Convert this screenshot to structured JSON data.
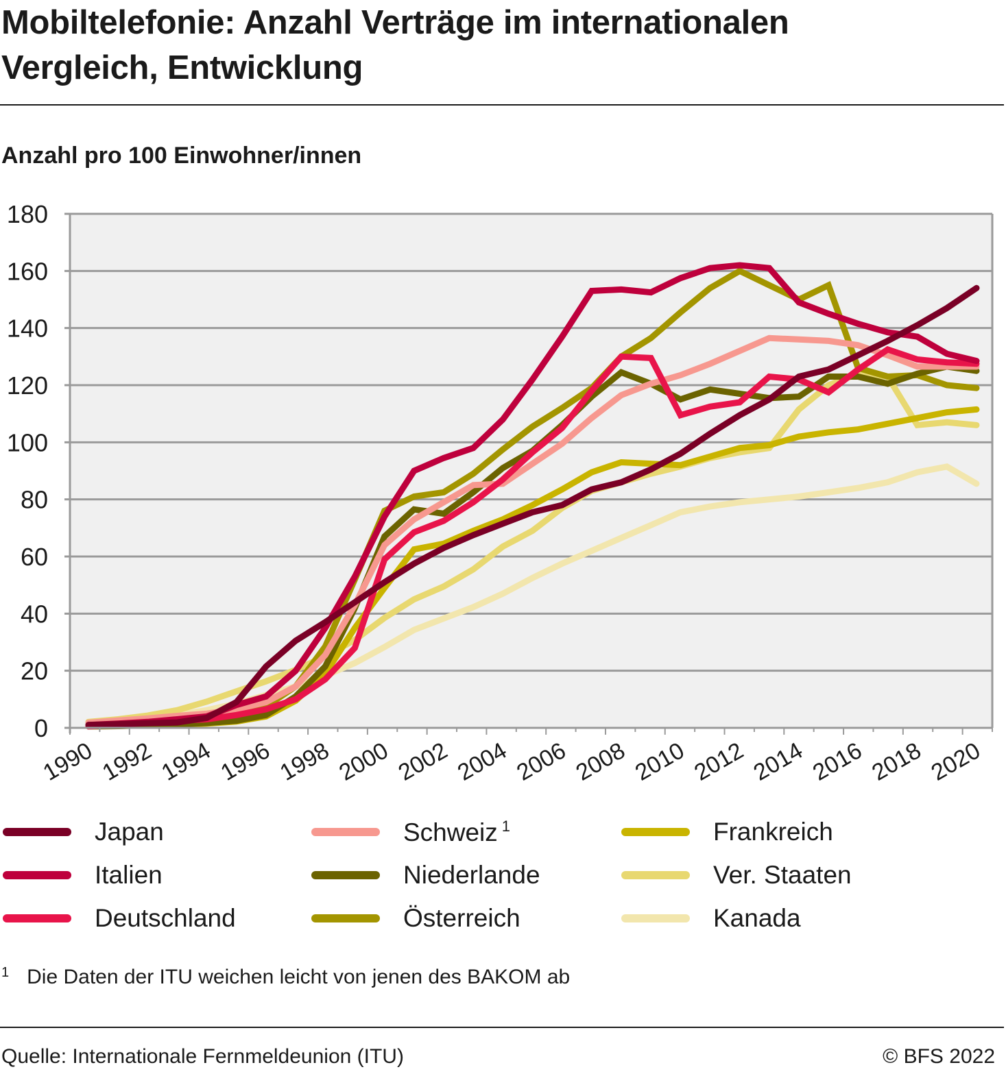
{
  "title": "Mobiltelefonie: Anzahl Verträge im internationalen Vergleich, Entwicklung",
  "title_lines": [
    "Mobiltelefonie: Anzahl Verträge im internationalen",
    "Vergleich, Entwicklung"
  ],
  "footnote": {
    "mark": "1",
    "text": "Die Daten der ITU weichen leicht von jenen des BAKOM ab"
  },
  "source": "Quelle: Internationale Fernmeldeunion (ITU)",
  "copyright": "© BFS 2022",
  "chart_data": {
    "type": "line",
    "title": "Mobiltelefonie: Anzahl Verträge im internationalen Vergleich, Entwicklung",
    "subtitle": "Anzahl pro 100 Einwohner/innen",
    "xlabel": "",
    "ylabel": "Anzahl pro 100 Einwohner/innen",
    "x": [
      1990,
      1991,
      1992,
      1993,
      1994,
      1995,
      1996,
      1997,
      1998,
      1999,
      2000,
      2001,
      2002,
      2003,
      2004,
      2005,
      2006,
      2007,
      2008,
      2009,
      2010,
      2011,
      2012,
      2013,
      2014,
      2015,
      2016,
      2017,
      2018,
      2019,
      2020
    ],
    "x_ticks": [
      "1990",
      "1992",
      "1994",
      "1996",
      "1998",
      "2000",
      "2002",
      "2004",
      "2006",
      "2008",
      "2010",
      "2012",
      "2014",
      "2016",
      "2018",
      "2020"
    ],
    "xlim": [
      1989.4,
      2020.5
    ],
    "ylim": [
      0,
      180
    ],
    "y_ticks": [
      0,
      20,
      40,
      60,
      80,
      100,
      120,
      140,
      160,
      180
    ],
    "grid": true,
    "legend_position": "bottom",
    "series": [
      {
        "name": "Japan",
        "color": "#7a0026",
        "values": [
          1,
          1.3,
          1.6,
          1.9,
          3.5,
          9,
          21.5,
          30.5,
          37,
          44,
          51,
          57.5,
          63,
          67.5,
          71.5,
          75.5,
          78,
          83.5,
          86,
          90.5,
          96,
          103,
          109.5,
          115,
          123,
          125.5,
          130.5,
          135.5,
          141,
          147,
          154
        ]
      },
      {
        "name": "Italien",
        "color": "#be003c",
        "values": [
          1,
          1.5,
          2.1,
          3,
          4,
          8,
          11,
          20,
          35,
          53,
          74,
          90,
          94.5,
          98,
          108,
          122,
          137,
          153,
          153.5,
          152.5,
          157.5,
          161,
          162,
          161,
          149,
          145,
          141.5,
          138.5,
          137,
          131,
          128.5
        ]
      },
      {
        "name": "Deutschland",
        "color": "#e8144a",
        "values": [
          0.5,
          1,
          1.9,
          2.5,
          3,
          4.5,
          6.5,
          10,
          17,
          28,
          59,
          68.5,
          72.5,
          79,
          87,
          96.5,
          105,
          118,
          130,
          129.5,
          109.5,
          112.5,
          114,
          123,
          122,
          117.5,
          125.5,
          132.5,
          129,
          128,
          127.5
        ]
      },
      {
        "name": "Schweiz",
        "footnote": "1",
        "color": "#f7988f",
        "values": [
          1.8,
          2.6,
          3.3,
          4.2,
          5,
          6.5,
          9,
          14.5,
          25.5,
          43,
          64,
          73,
          79,
          85,
          85.5,
          92.5,
          99.5,
          108.5,
          116.5,
          120.5,
          123.5,
          127.5,
          132,
          136.5,
          136,
          135.5,
          134,
          130.5,
          126.5,
          126.5,
          126.5
        ]
      },
      {
        "name": "Niederlande",
        "color": "#6b6300",
        "values": [
          0.5,
          0.6,
          0.9,
          1.2,
          1.7,
          2.5,
          4.5,
          11,
          21.5,
          42,
          67,
          76.5,
          75,
          82.5,
          91,
          97,
          106,
          116,
          124.5,
          120.5,
          115,
          118.5,
          117,
          115.5,
          116,
          123,
          123,
          120.5,
          124,
          126.5,
          125
        ]
      },
      {
        "name": "Österreich",
        "color": "#a39500",
        "values": [
          1,
          1.3,
          1.8,
          2.5,
          3,
          4.5,
          7.5,
          14.5,
          28.5,
          52,
          76,
          81,
          82.5,
          89,
          97.5,
          105.5,
          112,
          119,
          130,
          136.5,
          145.5,
          154,
          160,
          155,
          150,
          155,
          126,
          123,
          123.5,
          120,
          119
        ]
      },
      {
        "name": "Frankreich",
        "color": "#c9b400",
        "values": [
          0.5,
          0.6,
          0.9,
          1.2,
          1.5,
          2.2,
          4,
          9.5,
          19,
          35,
          49,
          62.5,
          64.5,
          69,
          73,
          78,
          83.5,
          89.5,
          93,
          92.5,
          92,
          95,
          98,
          99,
          102,
          103.5,
          104.5,
          106.5,
          108.5,
          110.5,
          111.5
        ]
      },
      {
        "name": "Ver. Staaten",
        "color": "#e8d870",
        "values": [
          2.1,
          3,
          4.3,
          6.2,
          9.2,
          12.8,
          16.3,
          20.3,
          25.1,
          30.8,
          38.5,
          45,
          49.5,
          55.5,
          63.5,
          69,
          77,
          83,
          86,
          89,
          91.5,
          94.5,
          96.5,
          98,
          111.5,
          120,
          124,
          123,
          106,
          107,
          106
        ]
      },
      {
        "name": "Kanada",
        "color": "#f2e6ad",
        "values": [
          2,
          2.5,
          3.5,
          4.5,
          6.2,
          8.5,
          11.5,
          14.5,
          18.3,
          22.7,
          28.3,
          34.3,
          38.3,
          42.3,
          47,
          52.5,
          57.5,
          62,
          66.5,
          71,
          75.5,
          77.5,
          79,
          80,
          81,
          82.5,
          84,
          86,
          89.5,
          91.5,
          85.5
        ]
      }
    ]
  },
  "legend": [
    {
      "label": "Japan",
      "sup": ""
    },
    {
      "label": "Italien",
      "sup": ""
    },
    {
      "label": "Deutschland",
      "sup": ""
    },
    {
      "label": "Schweiz",
      "sup": "1"
    },
    {
      "label": "Niederlande",
      "sup": ""
    },
    {
      "label": "Österreich",
      "sup": ""
    },
    {
      "label": "Frankreich",
      "sup": ""
    },
    {
      "label": "Ver. Staaten",
      "sup": ""
    },
    {
      "label": "Kanada",
      "sup": ""
    }
  ]
}
